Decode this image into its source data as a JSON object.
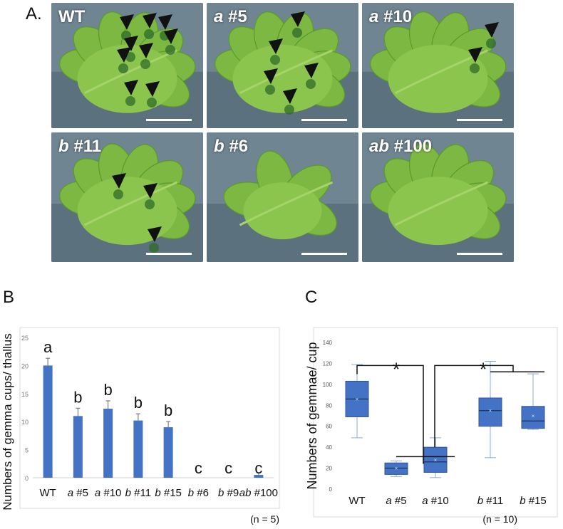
{
  "panels": {
    "a_letter": "A.",
    "b_letter": "B",
    "c_letter": "C"
  },
  "photos": [
    {
      "genotype": "WT",
      "number": ""
    },
    {
      "genotype": "a",
      "number": "#5"
    },
    {
      "genotype": "a",
      "number": "#10"
    },
    {
      "genotype": "b",
      "number": "#11"
    },
    {
      "genotype": "b",
      "number": "#6"
    },
    {
      "genotype": "ab",
      "number": "#100"
    }
  ],
  "colors": {
    "bar": "#4472c4",
    "box_fill": "#4472c4",
    "box_edge": "#8faadc",
    "photo_bg": "#5b6e7a",
    "thallus": "#7cb842"
  },
  "chart_data": [
    {
      "type": "bar",
      "ylabel": "Numbers of gemma cups/ thallus",
      "ylim": [
        0,
        25
      ],
      "yticks": [
        0,
        5,
        10,
        15,
        20,
        25
      ],
      "categories": [
        {
          "gen": "WT",
          "num": ""
        },
        {
          "gen": "a",
          "num": "#5"
        },
        {
          "gen": "a",
          "num": "#10"
        },
        {
          "gen": "b",
          "num": "#11"
        },
        {
          "gen": "b",
          "num": "#15"
        },
        {
          "gen": "b",
          "num": "#6"
        },
        {
          "gen": "b",
          "num": "#9"
        },
        {
          "gen": "ab",
          "num": "#100"
        }
      ],
      "values": [
        20,
        11,
        12.3,
        10.2,
        9,
        0,
        0,
        0.5
      ],
      "errors": [
        1.3,
        1.4,
        1.4,
        1.2,
        1.0,
        0,
        0,
        0.4
      ],
      "letters": [
        "a",
        "b",
        "b",
        "b",
        "b",
        "c",
        "c",
        "c"
      ],
      "note": "(n = 5)"
    },
    {
      "type": "box",
      "ylabel": "Numbers of gemmae/ cup",
      "ylim": [
        0,
        140
      ],
      "yticks": [
        0,
        20,
        40,
        60,
        80,
        100,
        120,
        140
      ],
      "categories": [
        {
          "gen": "WT",
          "num": ""
        },
        {
          "gen": "a",
          "num": "#5"
        },
        {
          "gen": "a",
          "num": "#10"
        },
        {
          "gen": "b",
          "num": "#11"
        },
        {
          "gen": "b",
          "num": "#15"
        }
      ],
      "boxes": [
        {
          "min": 49,
          "q1": 69,
          "median": 86,
          "q3": 103,
          "max": 119,
          "mean": 86
        },
        {
          "min": 12,
          "q1": 14,
          "median": 20,
          "q3": 25,
          "max": 27,
          "mean": 20
        },
        {
          "min": 11,
          "q1": 16,
          "median": 26,
          "q3": 40,
          "max": 49,
          "mean": 28
        },
        {
          "min": 30,
          "q1": 60,
          "median": 75,
          "q3": 87,
          "max": 122,
          "mean": 75
        },
        {
          "min": 57,
          "q1": 58,
          "median": 65,
          "q3": 79,
          "max": 110,
          "mean": 70
        }
      ],
      "significance": [
        "*",
        "*"
      ],
      "note": "(n = 10)"
    }
  ]
}
